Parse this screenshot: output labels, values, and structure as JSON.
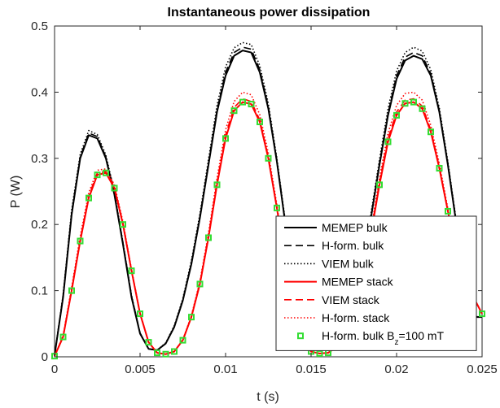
{
  "chart_data": {
    "type": "line",
    "title": "Instantaneous power dissipation",
    "xlabel": "t (s)",
    "ylabel": "P (W)",
    "xlim": [
      0,
      0.025
    ],
    "ylim": [
      0,
      0.5
    ],
    "xticks": [
      0,
      0.005,
      0.01,
      0.015,
      0.02,
      0.025
    ],
    "xtick_labels": [
      "0",
      "0.005",
      "0.01",
      "0.015",
      "0.02",
      "0.025"
    ],
    "yticks": [
      0,
      0.1,
      0.2,
      0.3,
      0.4,
      0.5
    ],
    "ytick_labels": [
      "0",
      "0.1",
      "0.2",
      "0.3",
      "0.4",
      "0.5"
    ],
    "grid": false,
    "legend_position": "bottom-right",
    "series": [
      {
        "name": "MEMEP bulk",
        "color": "#000000",
        "style": "solid",
        "x": [
          0,
          0.0005,
          0.001,
          0.0015,
          0.002,
          0.0025,
          0.003,
          0.0035,
          0.004,
          0.0045,
          0.005,
          0.0055,
          0.006,
          0.0065,
          0.007,
          0.0075,
          0.008,
          0.0085,
          0.009,
          0.0095,
          0.01,
          0.0105,
          0.011,
          0.0115,
          0.012,
          0.0125,
          0.013,
          0.0135,
          0.014,
          0.0145,
          0.015,
          0.0155,
          0.016,
          0.0165,
          0.017,
          0.0175,
          0.018,
          0.0185,
          0.019,
          0.0195,
          0.02,
          0.0205,
          0.021,
          0.0215,
          0.022,
          0.0225,
          0.023,
          0.0235,
          0.024,
          0.0245,
          0.025
        ],
        "values": [
          0.002,
          0.09,
          0.215,
          0.3,
          0.335,
          0.33,
          0.3,
          0.245,
          0.17,
          0.09,
          0.035,
          0.012,
          0.01,
          0.02,
          0.045,
          0.085,
          0.14,
          0.21,
          0.29,
          0.37,
          0.425,
          0.455,
          0.463,
          0.46,
          0.43,
          0.375,
          0.295,
          0.2,
          0.11,
          0.045,
          0.015,
          0.01,
          0.012,
          0.02,
          0.045,
          0.085,
          0.14,
          0.21,
          0.29,
          0.365,
          0.42,
          0.448,
          0.455,
          0.45,
          0.425,
          0.37,
          0.29,
          0.2,
          0.12,
          0.06,
          0.06
        ]
      },
      {
        "name": "H-form. bulk",
        "color": "#000000",
        "style": "dashed",
        "x": [
          0,
          0.0005,
          0.001,
          0.0015,
          0.002,
          0.0025,
          0.003,
          0.0035,
          0.004,
          0.0045,
          0.005,
          0.0055,
          0.006,
          0.0065,
          0.007,
          0.0075,
          0.008,
          0.0085,
          0.009,
          0.0095,
          0.01,
          0.0105,
          0.011,
          0.0115,
          0.012,
          0.0125,
          0.013,
          0.0135,
          0.014,
          0.0145,
          0.015,
          0.0155,
          0.016,
          0.0165,
          0.017,
          0.0175,
          0.018,
          0.0185,
          0.019,
          0.0195,
          0.02,
          0.0205,
          0.021,
          0.0215,
          0.022,
          0.0225,
          0.023,
          0.0235,
          0.024,
          0.0245,
          0.025
        ],
        "values": [
          0.002,
          0.092,
          0.218,
          0.302,
          0.338,
          0.333,
          0.302,
          0.247,
          0.172,
          0.092,
          0.036,
          0.012,
          0.01,
          0.02,
          0.046,
          0.086,
          0.142,
          0.212,
          0.293,
          0.373,
          0.43,
          0.46,
          0.468,
          0.465,
          0.434,
          0.378,
          0.297,
          0.202,
          0.111,
          0.046,
          0.015,
          0.01,
          0.012,
          0.02,
          0.046,
          0.086,
          0.142,
          0.212,
          0.293,
          0.368,
          0.425,
          0.453,
          0.46,
          0.455,
          0.428,
          0.372,
          0.292,
          0.202,
          0.121,
          0.061,
          0.06
        ]
      },
      {
        "name": "VIEM bulk",
        "color": "#000000",
        "style": "dotted",
        "x": [
          0,
          0.0005,
          0.001,
          0.0015,
          0.002,
          0.0025,
          0.003,
          0.0035,
          0.004,
          0.0045,
          0.005,
          0.0055,
          0.006,
          0.0065,
          0.007,
          0.0075,
          0.008,
          0.0085,
          0.009,
          0.0095,
          0.01,
          0.0105,
          0.011,
          0.0115,
          0.012,
          0.0125,
          0.013,
          0.0135,
          0.014,
          0.0145,
          0.015,
          0.0155,
          0.016,
          0.0165,
          0.017,
          0.0175,
          0.018,
          0.0185,
          0.019,
          0.0195,
          0.02,
          0.0205,
          0.021,
          0.0215,
          0.022,
          0.0225,
          0.023,
          0.0235,
          0.024,
          0.0245,
          0.025
        ],
        "values": [
          0.002,
          0.094,
          0.222,
          0.306,
          0.342,
          0.336,
          0.305,
          0.249,
          0.173,
          0.093,
          0.036,
          0.012,
          0.01,
          0.021,
          0.047,
          0.088,
          0.145,
          0.216,
          0.298,
          0.38,
          0.438,
          0.467,
          0.475,
          0.472,
          0.44,
          0.383,
          0.3,
          0.204,
          0.112,
          0.046,
          0.015,
          0.01,
          0.012,
          0.021,
          0.047,
          0.088,
          0.145,
          0.216,
          0.298,
          0.375,
          0.432,
          0.46,
          0.468,
          0.462,
          0.434,
          0.376,
          0.295,
          0.204,
          0.122,
          0.061,
          0.06
        ]
      },
      {
        "name": "MEMEP stack",
        "color": "#ff0000",
        "style": "solid",
        "x": [
          0,
          0.0005,
          0.001,
          0.0015,
          0.002,
          0.0025,
          0.003,
          0.0035,
          0.004,
          0.0045,
          0.005,
          0.0055,
          0.006,
          0.0065,
          0.007,
          0.0075,
          0.008,
          0.0085,
          0.009,
          0.0095,
          0.01,
          0.0105,
          0.011,
          0.0115,
          0.012,
          0.0125,
          0.013,
          0.0135,
          0.014,
          0.0145,
          0.015,
          0.0155,
          0.016,
          0.0165,
          0.017,
          0.0175,
          0.018,
          0.0185,
          0.019,
          0.0195,
          0.02,
          0.0205,
          0.021,
          0.0215,
          0.022,
          0.0225,
          0.023,
          0.0235,
          0.024,
          0.0245,
          0.025
        ],
        "values": [
          0.001,
          0.03,
          0.1,
          0.175,
          0.24,
          0.275,
          0.278,
          0.255,
          0.2,
          0.13,
          0.065,
          0.022,
          0.006,
          0.004,
          0.008,
          0.025,
          0.06,
          0.11,
          0.18,
          0.26,
          0.33,
          0.372,
          0.385,
          0.382,
          0.355,
          0.3,
          0.225,
          0.14,
          0.07,
          0.025,
          0.008,
          0.005,
          0.006,
          0.015,
          0.035,
          0.07,
          0.12,
          0.185,
          0.26,
          0.325,
          0.365,
          0.383,
          0.385,
          0.375,
          0.34,
          0.285,
          0.22,
          0.16,
          0.13,
          0.09,
          0.065
        ]
      },
      {
        "name": "VIEM stack",
        "color": "#ff0000",
        "style": "dashed",
        "x": [
          0,
          0.0005,
          0.001,
          0.0015,
          0.002,
          0.0025,
          0.003,
          0.0035,
          0.004,
          0.0045,
          0.005,
          0.0055,
          0.006,
          0.0065,
          0.007,
          0.0075,
          0.008,
          0.0085,
          0.009,
          0.0095,
          0.01,
          0.0105,
          0.011,
          0.0115,
          0.012,
          0.0125,
          0.013,
          0.0135,
          0.014,
          0.0145,
          0.015,
          0.0155,
          0.016,
          0.0165,
          0.017,
          0.0175,
          0.018,
          0.0185,
          0.019,
          0.0195,
          0.02,
          0.0205,
          0.021,
          0.0215,
          0.022,
          0.0225,
          0.023,
          0.0235,
          0.024,
          0.0245,
          0.025
        ],
        "values": [
          0.001,
          0.031,
          0.102,
          0.177,
          0.243,
          0.278,
          0.28,
          0.257,
          0.202,
          0.131,
          0.066,
          0.022,
          0.006,
          0.004,
          0.008,
          0.025,
          0.061,
          0.112,
          0.183,
          0.264,
          0.335,
          0.377,
          0.39,
          0.386,
          0.358,
          0.302,
          0.226,
          0.141,
          0.07,
          0.025,
          0.008,
          0.005,
          0.006,
          0.015,
          0.035,
          0.071,
          0.122,
          0.188,
          0.264,
          0.33,
          0.37,
          0.388,
          0.39,
          0.379,
          0.343,
          0.287,
          0.221,
          0.161,
          0.13,
          0.09,
          0.065
        ]
      },
      {
        "name": "H-form. stack",
        "color": "#ff0000",
        "style": "dotted",
        "x": [
          0,
          0.0005,
          0.001,
          0.0015,
          0.002,
          0.0025,
          0.003,
          0.0035,
          0.004,
          0.0045,
          0.005,
          0.0055,
          0.006,
          0.0065,
          0.007,
          0.0075,
          0.008,
          0.0085,
          0.009,
          0.0095,
          0.01,
          0.0105,
          0.011,
          0.0115,
          0.012,
          0.0125,
          0.013,
          0.0135,
          0.014,
          0.0145,
          0.015,
          0.0155,
          0.016,
          0.0165,
          0.017,
          0.0175,
          0.018,
          0.0185,
          0.019,
          0.0195,
          0.02,
          0.0205,
          0.021,
          0.0215,
          0.022,
          0.0225,
          0.023,
          0.0235,
          0.024,
          0.0245,
          0.025
        ],
        "values": [
          0.001,
          0.032,
          0.105,
          0.182,
          0.248,
          0.282,
          0.284,
          0.26,
          0.204,
          0.132,
          0.066,
          0.022,
          0.006,
          0.004,
          0.008,
          0.026,
          0.062,
          0.114,
          0.187,
          0.27,
          0.343,
          0.386,
          0.4,
          0.396,
          0.366,
          0.308,
          0.23,
          0.143,
          0.071,
          0.025,
          0.008,
          0.005,
          0.006,
          0.015,
          0.036,
          0.072,
          0.124,
          0.192,
          0.27,
          0.338,
          0.38,
          0.398,
          0.4,
          0.388,
          0.35,
          0.292,
          0.224,
          0.162,
          0.131,
          0.09,
          0.065
        ]
      },
      {
        "name": "H-form. bulk B_z=100 mT",
        "color": "#33dd33",
        "style": "markers",
        "x": [
          0,
          0.0005,
          0.001,
          0.0015,
          0.002,
          0.0025,
          0.003,
          0.0035,
          0.004,
          0.0045,
          0.005,
          0.0055,
          0.006,
          0.0065,
          0.007,
          0.0075,
          0.008,
          0.0085,
          0.009,
          0.0095,
          0.01,
          0.0105,
          0.011,
          0.0115,
          0.012,
          0.0125,
          0.013,
          0.0135,
          0.014,
          0.0145,
          0.015,
          0.0155,
          0.016,
          0.0165,
          0.017,
          0.0175,
          0.018,
          0.0185,
          0.019,
          0.0195,
          0.02,
          0.0205,
          0.021,
          0.0215,
          0.022,
          0.0225,
          0.023,
          0.0235,
          0.024,
          0.0245,
          0.025
        ],
        "values": [
          0.001,
          0.03,
          0.1,
          0.175,
          0.24,
          0.275,
          0.278,
          0.255,
          0.2,
          0.13,
          0.065,
          0.022,
          0.006,
          0.004,
          0.008,
          0.025,
          0.06,
          0.11,
          0.18,
          0.26,
          0.33,
          0.372,
          0.385,
          0.382,
          0.355,
          0.3,
          0.225,
          0.14,
          0.07,
          0.025,
          0.008,
          0.005,
          0.006,
          0.015,
          0.035,
          0.07,
          0.12,
          0.185,
          0.26,
          0.325,
          0.365,
          0.383,
          0.385,
          0.375,
          0.34,
          0.285,
          0.22,
          0.16,
          0.13,
          0.09,
          0.065
        ]
      }
    ]
  }
}
